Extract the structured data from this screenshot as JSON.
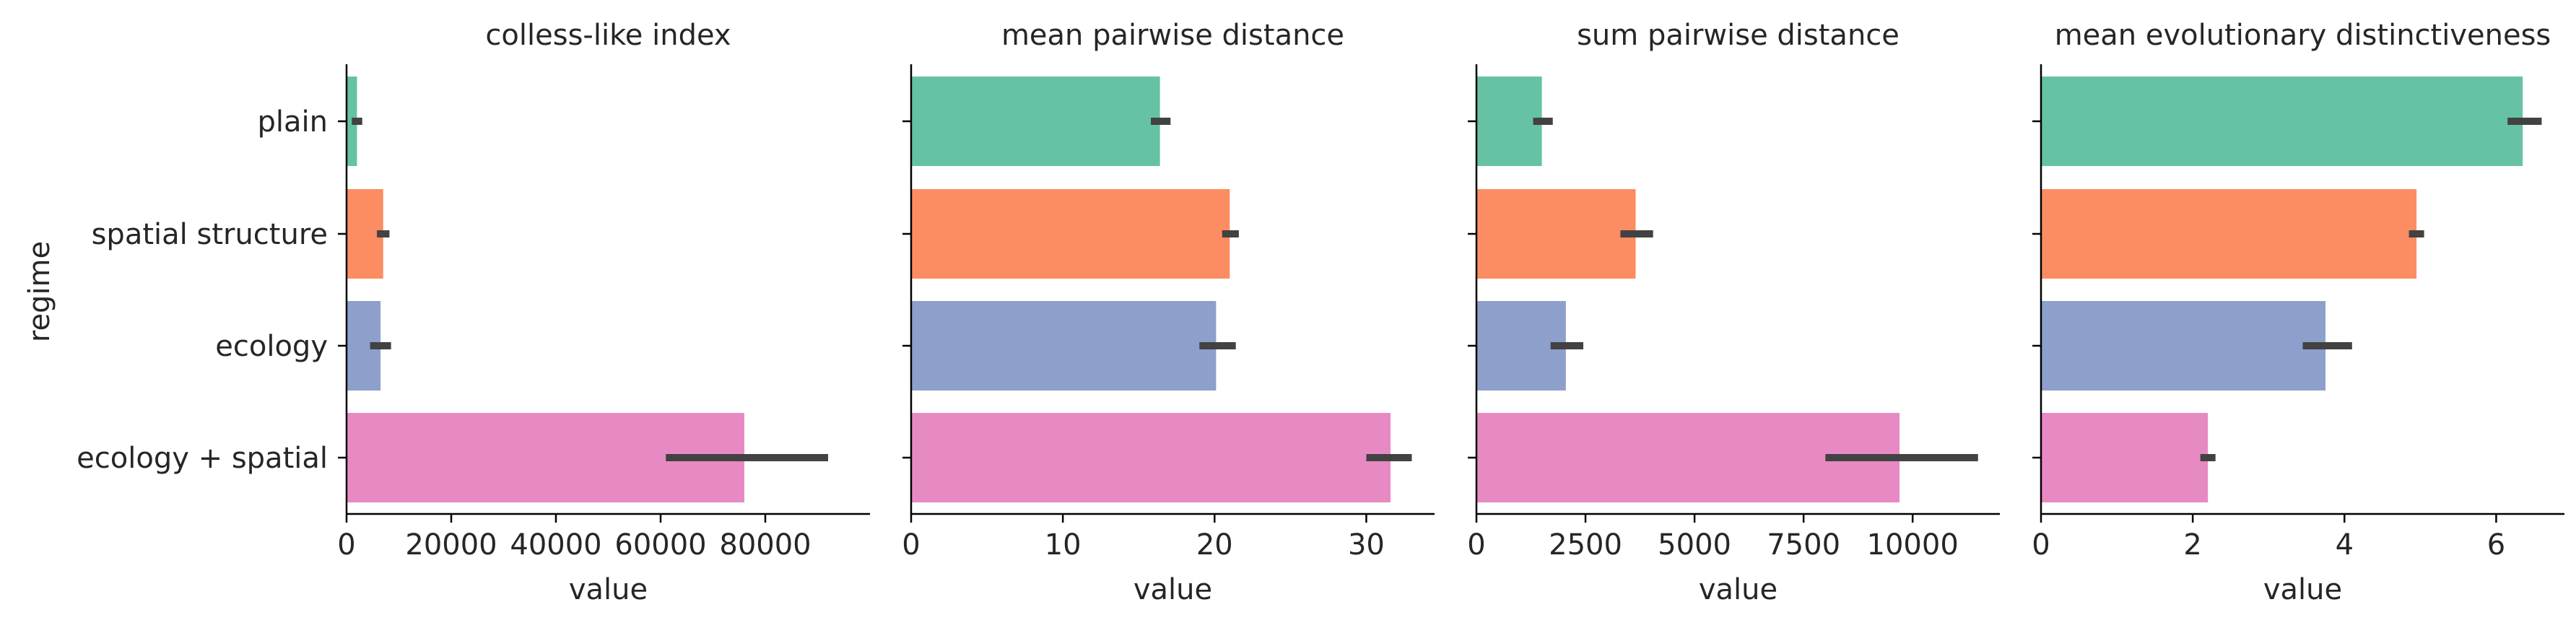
{
  "figure": {
    "ylabel": "regime"
  },
  "chart_data": [
    {
      "type": "bar",
      "orientation": "horizontal",
      "title": "colless-like index",
      "xlabel": "value",
      "ylabel": "regime",
      "categories": [
        "plain",
        "spatial structure",
        "ecology",
        "ecology + spatial"
      ],
      "values": [
        2000,
        7000,
        6500,
        76000
      ],
      "ci": [
        [
          1000,
          3000
        ],
        [
          5800,
          8200
        ],
        [
          4500,
          8500
        ],
        [
          61000,
          92000
        ]
      ],
      "xlim": [
        0,
        100000
      ],
      "xticks": [
        0,
        20000,
        40000,
        60000,
        80000
      ],
      "xtick_labels": [
        "0",
        "20000",
        "40000",
        "60000",
        "80000"
      ],
      "colors": [
        "#66c2a5",
        "#fc8d62",
        "#8da0cb",
        "#e78ac3"
      ]
    },
    {
      "type": "bar",
      "orientation": "horizontal",
      "title": "mean pairwise distance",
      "xlabel": "value",
      "categories": [
        "plain",
        "spatial structure",
        "ecology",
        "ecology + spatial"
      ],
      "values": [
        16.4,
        21.0,
        20.1,
        31.6
      ],
      "ci": [
        [
          15.8,
          17.1
        ],
        [
          20.5,
          21.6
        ],
        [
          19.0,
          21.4
        ],
        [
          30.0,
          33.0
        ]
      ],
      "xlim": [
        0,
        34.5
      ],
      "xticks": [
        0,
        10,
        20,
        30
      ],
      "xtick_labels": [
        "0",
        "10",
        "20",
        "30"
      ],
      "colors": [
        "#66c2a5",
        "#fc8d62",
        "#8da0cb",
        "#e78ac3"
      ]
    },
    {
      "type": "bar",
      "orientation": "horizontal",
      "title": "sum pairwise distance",
      "xlabel": "value",
      "categories": [
        "plain",
        "spatial structure",
        "ecology",
        "ecology + spatial"
      ],
      "values": [
        1500,
        3650,
        2050,
        9700
      ],
      "ci": [
        [
          1300,
          1750
        ],
        [
          3300,
          4050
        ],
        [
          1700,
          2450
        ],
        [
          8000,
          11500
        ]
      ],
      "xlim": [
        0,
        12000
      ],
      "xticks": [
        0,
        2500,
        5000,
        7500,
        10000
      ],
      "xtick_labels": [
        "0",
        "2500",
        "5000",
        "7500",
        "10000"
      ],
      "colors": [
        "#66c2a5",
        "#fc8d62",
        "#8da0cb",
        "#e78ac3"
      ]
    },
    {
      "type": "bar",
      "orientation": "horizontal",
      "title": "mean evolutionary distinctiveness",
      "xlabel": "value",
      "categories": [
        "plain",
        "spatial structure",
        "ecology",
        "ecology + spatial"
      ],
      "values": [
        6.35,
        4.95,
        3.75,
        2.2
      ],
      "ci": [
        [
          6.15,
          6.6
        ],
        [
          4.85,
          5.05
        ],
        [
          3.45,
          4.1
        ],
        [
          2.1,
          2.3
        ]
      ],
      "xlim": [
        0,
        6.9
      ],
      "xticks": [
        0,
        2,
        4,
        6
      ],
      "xtick_labels": [
        "0",
        "2",
        "4",
        "6"
      ],
      "colors": [
        "#66c2a5",
        "#fc8d62",
        "#8da0cb",
        "#e78ac3"
      ]
    }
  ]
}
